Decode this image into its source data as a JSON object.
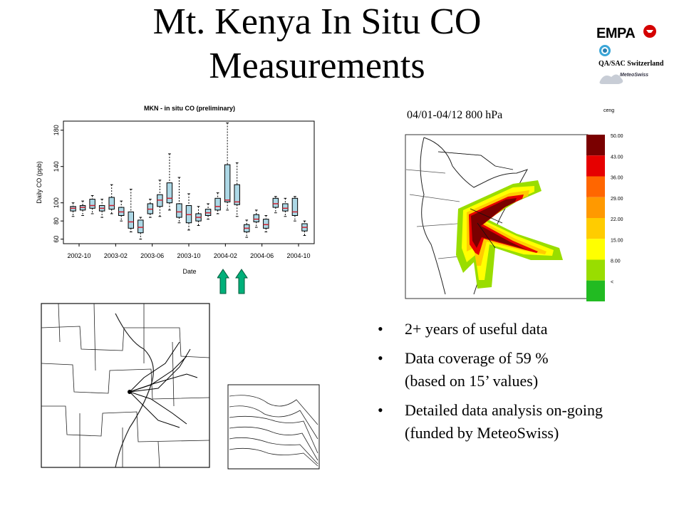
{
  "slide": {
    "title_line1": "Mt. Kenya In Situ CO",
    "title_line2": "Measurements"
  },
  "logos": {
    "empa": "EMPA",
    "qa_sac": "QA/SAC Switzerland",
    "meteoswiss": "MeteoSwiss"
  },
  "map": {
    "label": "04/01-04/12 800 hPa",
    "legend_ticks": [
      "50.00",
      "43.00",
      "36.00",
      "29.00",
      "22.00",
      "15.00",
      "8.00",
      "<"
    ],
    "legend_colors": [
      "#7a0000",
      "#e60000",
      "#ff6600",
      "#ff9900",
      "#ffcc00",
      "#ffff00",
      "#99dd00",
      "#22bb22"
    ],
    "legend_top_text": "ceng"
  },
  "bullets": [
    {
      "lines": [
        "2+ years of useful data"
      ]
    },
    {
      "lines": [
        "Data coverage of 59 %",
        "(based on 15’ values)"
      ]
    },
    {
      "lines": [
        "Detailed data analysis on-going",
        "(funded by MeteoSwiss)"
      ]
    }
  ],
  "bullet_symbol": "•",
  "chart_data": {
    "type": "boxplot",
    "title": "MKN - in situ CO (preliminary)",
    "xlabel": "Date",
    "ylabel": "Daily CO (ppb)",
    "ylim": [
      55,
      190
    ],
    "yticks": [
      60,
      80,
      100,
      140,
      180
    ],
    "xticks": [
      "2002-10",
      "2003-02",
      "2003-06",
      "2003-10",
      "2004-02",
      "2004-06",
      "2004-10"
    ],
    "boxes": [
      {
        "q1": 91,
        "median": 94,
        "q3": 96,
        "lo": 85,
        "hi": 100
      },
      {
        "q1": 92,
        "median": 95,
        "q3": 97,
        "lo": 86,
        "hi": 102
      },
      {
        "q1": 94,
        "median": 97,
        "q3": 104,
        "lo": 88,
        "hi": 108
      },
      {
        "q1": 91,
        "median": 94,
        "q3": 97,
        "lo": 84,
        "hi": 104
      },
      {
        "q1": 93,
        "median": 97,
        "q3": 106,
        "lo": 88,
        "hi": 120
      },
      {
        "q1": 86,
        "median": 90,
        "q3": 95,
        "lo": 80,
        "hi": 102
      },
      {
        "q1": 72,
        "median": 79,
        "q3": 90,
        "lo": 68,
        "hi": 115
      },
      {
        "q1": 67,
        "median": 73,
        "q3": 81,
        "lo": 60,
        "hi": 84
      },
      {
        "q1": 88,
        "median": 93,
        "q3": 99,
        "lo": 84,
        "hi": 104
      },
      {
        "q1": 96,
        "median": 103,
        "q3": 109,
        "lo": 85,
        "hi": 125
      },
      {
        "q1": 100,
        "median": 105,
        "q3": 122,
        "lo": 92,
        "hi": 154
      },
      {
        "q1": 84,
        "median": 90,
        "q3": 99,
        "lo": 78,
        "hi": 128
      },
      {
        "q1": 78,
        "median": 87,
        "q3": 97,
        "lo": 70,
        "hi": 110
      },
      {
        "q1": 80,
        "median": 84,
        "q3": 88,
        "lo": 75,
        "hi": 96
      },
      {
        "q1": 86,
        "median": 89,
        "q3": 93,
        "lo": 82,
        "hi": 99
      },
      {
        "q1": 92,
        "median": 96,
        "q3": 105,
        "lo": 88,
        "hi": 111
      },
      {
        "q1": 101,
        "median": 103,
        "q3": 142,
        "lo": 92,
        "hi": 188
      },
      {
        "q1": 98,
        "median": 101,
        "q3": 120,
        "lo": 85,
        "hi": 144
      },
      {
        "q1": 68,
        "median": 72,
        "q3": 76,
        "lo": 62,
        "hi": 81
      },
      {
        "q1": 79,
        "median": 82,
        "q3": 87,
        "lo": 73,
        "hi": 92
      },
      {
        "q1": 72,
        "median": 76,
        "q3": 82,
        "lo": 68,
        "hi": 86
      },
      {
        "q1": 95,
        "median": 99,
        "q3": 105,
        "lo": 89,
        "hi": 107
      },
      {
        "q1": 91,
        "median": 94,
        "q3": 99,
        "lo": 85,
        "hi": 105
      },
      {
        "q1": 86,
        "median": 90,
        "q3": 105,
        "lo": 80,
        "hi": 107
      },
      {
        "q1": 69,
        "median": 73,
        "q3": 77,
        "lo": 64,
        "hi": 80
      }
    ],
    "grid": false
  }
}
